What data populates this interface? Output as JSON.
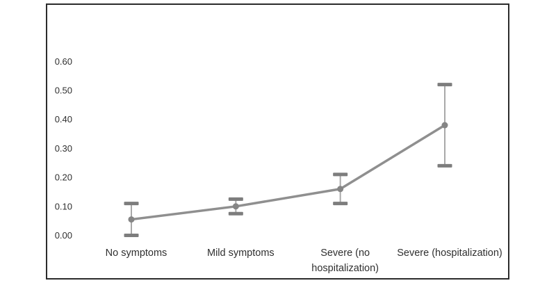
{
  "figure": {
    "background": "#ffffff",
    "border_color": "#2b2b2b"
  },
  "chart_data": {
    "type": "line",
    "title": "",
    "xlabel": "",
    "ylabel": "",
    "grid": false,
    "legend": "none",
    "marker": "circle",
    "categories": [
      "No symptoms",
      "Mild symptoms",
      "Severe (no hospitalization)",
      "Severe (hospitalization)"
    ],
    "category_label_lines": [
      [
        "No symptoms"
      ],
      [
        "Mild symptoms"
      ],
      [
        "Severe (no",
        "hospitalization)"
      ],
      [
        "Severe (hospitalization)"
      ]
    ],
    "series": [
      {
        "values": [
          0.055,
          0.1,
          0.16,
          0.38
        ],
        "ci_low": [
          0.0,
          0.075,
          0.11,
          0.24
        ],
        "ci_high": [
          0.11,
          0.125,
          0.21,
          0.52
        ]
      }
    ],
    "yticks": {
      "labels": [
        "0.00",
        "0.10",
        "0.20",
        "0.30",
        "0.40",
        "0.50",
        "0.60"
      ],
      "values": [
        0,
        0.1,
        0.2,
        0.3,
        0.4,
        0.5,
        0.6
      ]
    },
    "ylim": [
      0,
      0.6
    ],
    "colors": {
      "line": "#8f8f8f",
      "marker": "#858585",
      "error_line": "#a8a8a8",
      "error_cap": "#7d7d7d",
      "text": "#2f2f2f",
      "border": "#2b2b2b",
      "background": "#ffffff"
    }
  }
}
